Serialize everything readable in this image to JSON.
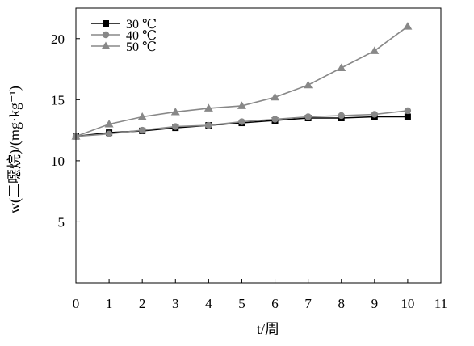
{
  "chart_data": {
    "type": "line",
    "x": [
      0,
      1,
      2,
      3,
      4,
      5,
      6,
      7,
      8,
      9,
      10
    ],
    "series": [
      {
        "name": "30 ℃",
        "values": [
          12.0,
          12.3,
          12.45,
          12.7,
          12.9,
          13.1,
          13.3,
          13.5,
          13.5,
          13.6,
          13.6
        ],
        "color": "#000000",
        "marker": "square"
      },
      {
        "name": "40 ℃",
        "values": [
          12.0,
          12.2,
          12.5,
          12.8,
          12.9,
          13.2,
          13.4,
          13.6,
          13.7,
          13.8,
          14.1
        ],
        "color": "#888888",
        "marker": "circle"
      },
      {
        "name": "50 ℃",
        "values": [
          12.0,
          13.0,
          13.6,
          14.0,
          14.3,
          14.5,
          15.2,
          16.2,
          17.6,
          19.0,
          21.0
        ],
        "color": "#888888",
        "marker": "triangle"
      }
    ],
    "xlabel": "t/周",
    "ylabel": "w(二噁烷)/(mg·kg⁻¹)",
    "xlim": [
      0,
      11
    ],
    "ylim": [
      0,
      22.5
    ],
    "xticks": [
      "0",
      "1",
      "2",
      "3",
      "4",
      "5",
      "6",
      "7",
      "8",
      "9",
      "10",
      "11"
    ],
    "yticks": [
      "5",
      "10",
      "15",
      "20"
    ],
    "grid": false,
    "legend_position": "top-left"
  }
}
